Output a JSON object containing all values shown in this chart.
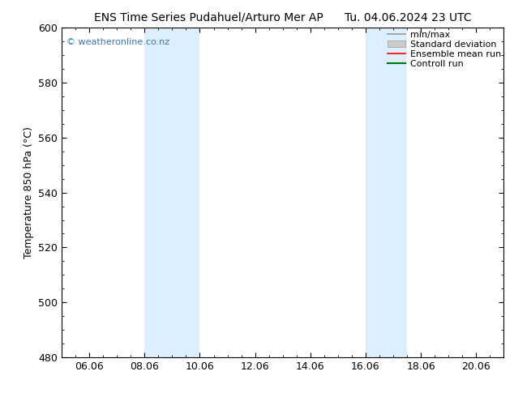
{
  "title_left": "ENS Time Series Pudahuel/Arturo Mer AP",
  "title_right": "Tu. 04.06.2024 23 UTC",
  "ylabel": "Temperature 850 hPa (°C)",
  "ylim": [
    480,
    600
  ],
  "yticks": [
    480,
    500,
    520,
    540,
    560,
    580,
    600
  ],
  "xlim": [
    0,
    16
  ],
  "xtick_labels": [
    "06.06",
    "08.06",
    "10.06",
    "12.06",
    "14.06",
    "16.06",
    "18.06",
    "20.06"
  ],
  "xtick_positions": [
    1,
    3,
    5,
    7,
    9,
    11,
    13,
    15
  ],
  "shade_bands": [
    {
      "x_start": 3.0,
      "x_end": 5.0
    },
    {
      "x_start": 11.0,
      "x_end": 12.5
    }
  ],
  "shade_color": "#ddeeff",
  "watermark": "© weatheronline.co.nz",
  "watermark_color": "#3377bb",
  "background_color": "#ffffff",
  "plot_bg_color": "#ffffff",
  "legend_items": [
    {
      "label": "min/max",
      "color": "#999999",
      "lw": 1.2,
      "style": "line"
    },
    {
      "label": "Standard deviation",
      "color": "#cccccc",
      "lw": 6,
      "style": "band"
    },
    {
      "label": "Ensemble mean run",
      "color": "#ff0000",
      "lw": 1.2,
      "style": "line"
    },
    {
      "label": "Controll run",
      "color": "#007700",
      "lw": 1.5,
      "style": "line"
    }
  ],
  "title_fontsize": 10,
  "ylabel_fontsize": 9,
  "tick_fontsize": 9,
  "legend_fontsize": 8
}
